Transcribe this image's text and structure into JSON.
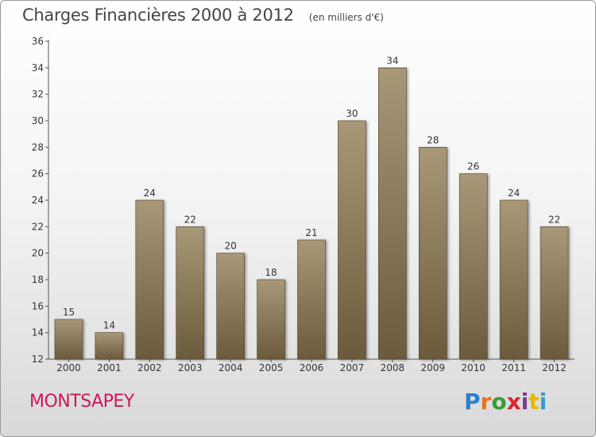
{
  "header": {
    "title": "Charges Financières 2000 à 2012",
    "unit": "(en milliers d'€)"
  },
  "footer": {
    "commune": "MONTSAPEY",
    "brand": "Proxiti"
  },
  "colors": {
    "bar_top": "#a89878",
    "bar_bottom": "#6b5a3c",
    "commune_text": "#c8195c"
  },
  "chart_data": {
    "type": "bar",
    "title": "Charges Financières 2000 à 2012",
    "subtitle": "(en milliers d'€)",
    "xlabel": "",
    "ylabel": "",
    "categories": [
      "2000",
      "2001",
      "2002",
      "2003",
      "2004",
      "2005",
      "2006",
      "2007",
      "2008",
      "2009",
      "2010",
      "2011",
      "2012"
    ],
    "values": [
      15,
      14,
      24,
      22,
      20,
      18,
      21,
      30,
      34,
      28,
      26,
      24,
      22
    ],
    "ylim": [
      12,
      36
    ],
    "yticks": [
      12,
      14,
      16,
      18,
      20,
      22,
      24,
      26,
      28,
      30,
      32,
      34,
      36
    ],
    "grid": false,
    "legend": "none"
  }
}
